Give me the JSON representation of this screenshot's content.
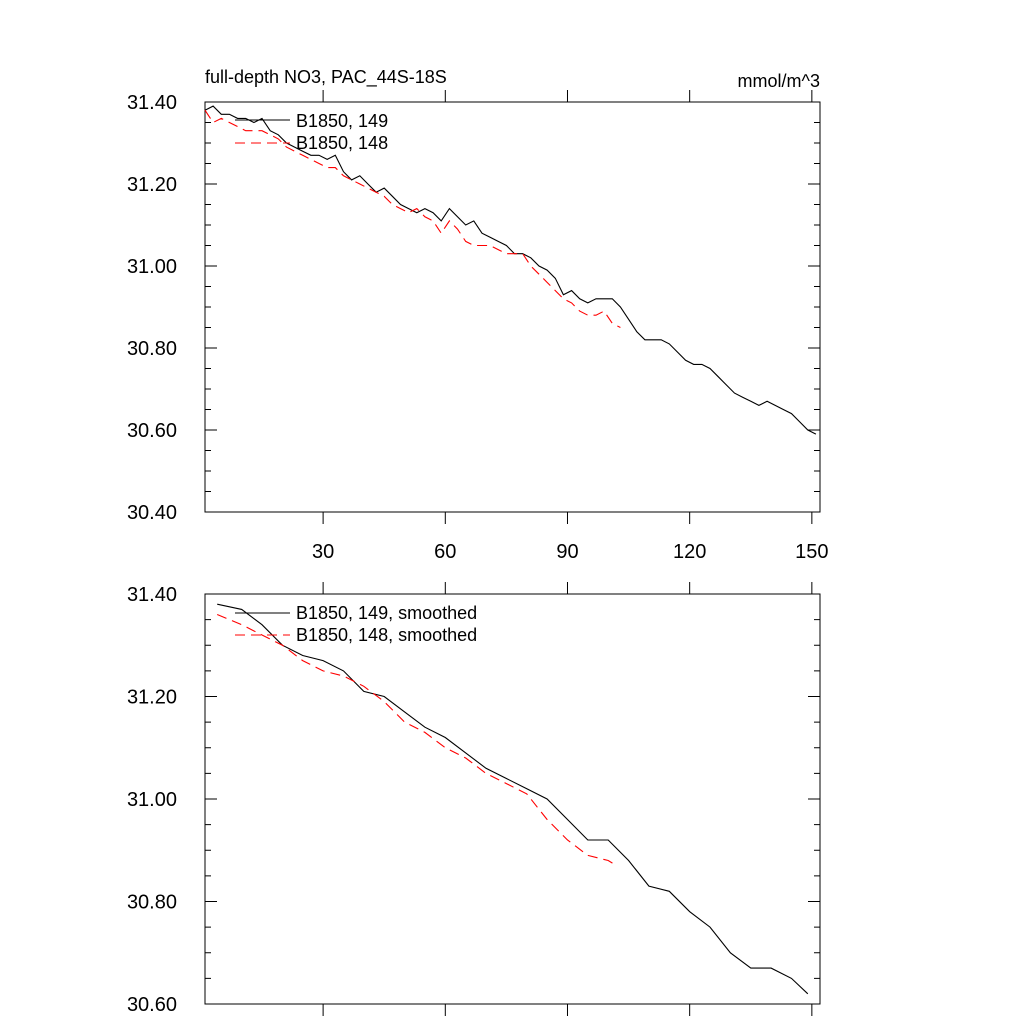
{
  "chart_data": [
    {
      "type": "line",
      "title": "full-depth NO3, PAC_44S-18S",
      "units": "mmol/m^3",
      "xlim": [
        1,
        152
      ],
      "ylim": [
        30.4,
        31.4
      ],
      "xticks": [
        30,
        60,
        90,
        120,
        150
      ],
      "yticks": [
        31.4,
        31.2,
        31.0,
        30.8,
        30.6,
        30.4
      ],
      "ytick_labels": [
        "31.40",
        "31.20",
        "31.00",
        "30.80",
        "30.60",
        "30.40"
      ],
      "xtick_labels": [
        "30",
        "60",
        "90",
        "120",
        "150"
      ],
      "legend_position": "top-left",
      "series": [
        {
          "name": "B1850, 149",
          "color": "#000000",
          "dash": "solid",
          "x": [
            1,
            3,
            5,
            7,
            9,
            11,
            13,
            15,
            17,
            19,
            21,
            23,
            25,
            27,
            29,
            31,
            33,
            35,
            37,
            39,
            41,
            43,
            45,
            47,
            49,
            51,
            53,
            55,
            57,
            59,
            61,
            63,
            65,
            67,
            69,
            71,
            73,
            75,
            77,
            79,
            81,
            83,
            85,
            87,
            89,
            91,
            93,
            95,
            97,
            99,
            101,
            103,
            105,
            107,
            109,
            111,
            113,
            115,
            117,
            119,
            121,
            123,
            125,
            127,
            129,
            131,
            133,
            135,
            137,
            139,
            141,
            143,
            145,
            147,
            149,
            151
          ],
          "values": [
            31.38,
            31.39,
            31.37,
            31.37,
            31.36,
            31.36,
            31.35,
            31.36,
            31.33,
            31.32,
            31.3,
            31.29,
            31.28,
            31.27,
            31.27,
            31.26,
            31.27,
            31.23,
            31.21,
            31.22,
            31.2,
            31.18,
            31.19,
            31.17,
            31.15,
            31.14,
            31.13,
            31.14,
            31.13,
            31.11,
            31.14,
            31.12,
            31.1,
            31.11,
            31.08,
            31.07,
            31.06,
            31.05,
            31.03,
            31.03,
            31.02,
            31.0,
            30.99,
            30.97,
            30.93,
            30.94,
            30.92,
            30.91,
            30.92,
            30.92,
            30.92,
            30.9,
            30.87,
            30.84,
            30.82,
            30.82,
            30.82,
            30.81,
            30.79,
            30.77,
            30.76,
            30.76,
            30.75,
            30.73,
            30.71,
            30.69,
            30.68,
            30.67,
            30.66,
            30.67,
            30.66,
            30.65,
            30.64,
            30.62,
            30.6,
            30.59
          ]
        },
        {
          "name": "B1850, 148",
          "color": "#ff0000",
          "dash": "dashed",
          "x": [
            1,
            3,
            5,
            7,
            9,
            11,
            13,
            15,
            17,
            19,
            21,
            23,
            25,
            27,
            29,
            31,
            33,
            35,
            37,
            39,
            41,
            43,
            45,
            47,
            49,
            51,
            53,
            55,
            57,
            59,
            61,
            63,
            65,
            67,
            69,
            71,
            73,
            75,
            77,
            79,
            81,
            83,
            85,
            87,
            89,
            91,
            93,
            95,
            97,
            99,
            101,
            103
          ],
          "values": [
            31.38,
            31.35,
            31.36,
            31.35,
            31.34,
            31.33,
            31.33,
            31.33,
            31.32,
            31.31,
            31.29,
            31.28,
            31.27,
            31.26,
            31.25,
            31.24,
            31.24,
            31.22,
            31.21,
            31.2,
            31.19,
            31.18,
            31.17,
            31.15,
            31.14,
            31.13,
            31.14,
            31.12,
            31.11,
            31.08,
            31.11,
            31.09,
            31.06,
            31.05,
            31.05,
            31.05,
            31.04,
            31.03,
            31.03,
            31.03,
            31.0,
            30.98,
            30.96,
            30.94,
            30.92,
            30.91,
            30.89,
            30.88,
            30.88,
            30.89,
            30.86,
            30.85
          ]
        }
      ]
    },
    {
      "type": "line",
      "xlim": [
        1,
        152
      ],
      "ylim": [
        30.6,
        31.4
      ],
      "xticks": [
        30,
        60,
        90,
        120,
        150
      ],
      "yticks": [
        31.4,
        31.2,
        31.0,
        30.8,
        30.6
      ],
      "ytick_labels": [
        "31.40",
        "31.20",
        "31.00",
        "30.80",
        "30.60"
      ],
      "legend_position": "top-left",
      "series": [
        {
          "name": "B1850, 149, smoothed",
          "color": "#000000",
          "dash": "solid",
          "x": [
            4,
            10,
            15,
            20,
            25,
            30,
            35,
            40,
            45,
            50,
            55,
            60,
            65,
            70,
            75,
            80,
            85,
            90,
            95,
            100,
            105,
            110,
            115,
            120,
            125,
            130,
            135,
            140,
            145,
            149
          ],
          "values": [
            31.38,
            31.37,
            31.34,
            31.3,
            31.28,
            31.27,
            31.25,
            31.21,
            31.2,
            31.17,
            31.14,
            31.12,
            31.09,
            31.06,
            31.04,
            31.02,
            31.0,
            30.96,
            30.92,
            30.92,
            30.88,
            30.83,
            30.82,
            30.78,
            30.75,
            30.7,
            30.67,
            30.67,
            30.65,
            30.62
          ]
        },
        {
          "name": "B1850, 148, smoothed",
          "color": "#ff0000",
          "dash": "dashed",
          "x": [
            4,
            10,
            15,
            20,
            25,
            30,
            35,
            40,
            45,
            50,
            55,
            60,
            65,
            70,
            75,
            80,
            85,
            90,
            95,
            100,
            102
          ],
          "values": [
            31.36,
            31.34,
            31.32,
            31.3,
            31.27,
            31.25,
            31.24,
            31.22,
            31.19,
            31.15,
            31.13,
            31.1,
            31.08,
            31.05,
            31.03,
            31.01,
            30.96,
            30.92,
            30.89,
            30.88,
            30.87
          ]
        }
      ]
    }
  ]
}
